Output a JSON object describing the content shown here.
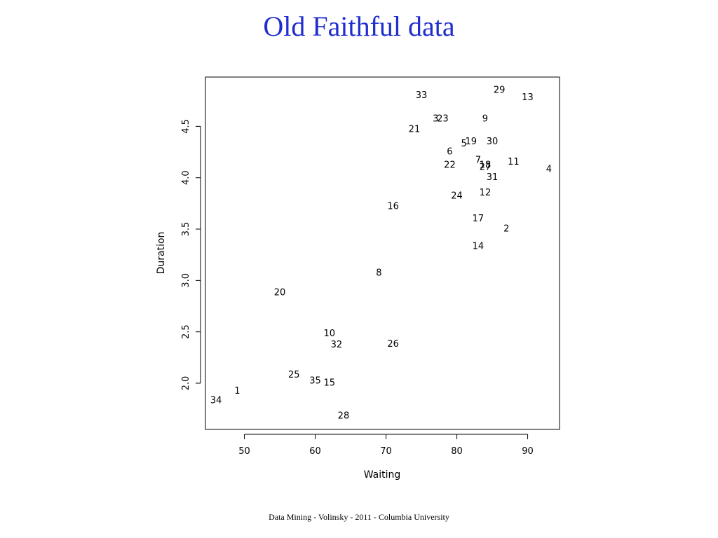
{
  "slide": {
    "title": "Old Faithful data",
    "footer": "Data Mining - Volinsky - 2011 -  Columbia University"
  },
  "chart_data": {
    "type": "scatter",
    "title": "",
    "xlabel": "Waiting",
    "ylabel": "Duration",
    "xlim": [
      44.5,
      94.5
    ],
    "ylim": [
      1.55,
      4.98
    ],
    "xticks": [
      50,
      60,
      70,
      80,
      90
    ],
    "yticks": [
      2.0,
      2.5,
      3.0,
      3.5,
      4.0,
      4.5
    ],
    "xtick_labels": [
      "50",
      "60",
      "70",
      "80",
      "90"
    ],
    "ytick_labels": [
      "2.0",
      "2.5",
      "3.0",
      "3.5",
      "4.0",
      "4.5"
    ],
    "grid": false,
    "point_marker": "text labels (observation index)",
    "points": [
      {
        "label": "1",
        "x": 49,
        "y": 1.92
      },
      {
        "label": "2",
        "x": 87,
        "y": 3.5
      },
      {
        "label": "3",
        "x": 77,
        "y": 4.57
      },
      {
        "label": "4",
        "x": 93,
        "y": 4.08
      },
      {
        "label": "5",
        "x": 81,
        "y": 4.33
      },
      {
        "label": "6",
        "x": 79,
        "y": 4.25
      },
      {
        "label": "7",
        "x": 83,
        "y": 4.17
      },
      {
        "label": "8",
        "x": 69,
        "y": 3.07
      },
      {
        "label": "9",
        "x": 84,
        "y": 4.57
      },
      {
        "label": "10",
        "x": 62,
        "y": 2.48
      },
      {
        "label": "11",
        "x": 88,
        "y": 4.15
      },
      {
        "label": "12",
        "x": 84,
        "y": 3.85
      },
      {
        "label": "13",
        "x": 90,
        "y": 4.78
      },
      {
        "label": "14",
        "x": 83,
        "y": 3.33
      },
      {
        "label": "15",
        "x": 62,
        "y": 2.0
      },
      {
        "label": "16",
        "x": 71,
        "y": 3.72
      },
      {
        "label": "17",
        "x": 83,
        "y": 3.6
      },
      {
        "label": "18",
        "x": 84,
        "y": 4.12
      },
      {
        "label": "19",
        "x": 82,
        "y": 4.35
      },
      {
        "label": "20",
        "x": 55,
        "y": 2.88
      },
      {
        "label": "21",
        "x": 74,
        "y": 4.47
      },
      {
        "label": "22",
        "x": 79,
        "y": 4.12
      },
      {
        "label": "23",
        "x": 78,
        "y": 4.57
      },
      {
        "label": "24",
        "x": 80,
        "y": 3.82
      },
      {
        "label": "25",
        "x": 57,
        "y": 2.08
      },
      {
        "label": "26",
        "x": 71,
        "y": 2.38
      },
      {
        "label": "27",
        "x": 84,
        "y": 4.1
      },
      {
        "label": "28",
        "x": 64,
        "y": 1.68
      },
      {
        "label": "29",
        "x": 86,
        "y": 4.85
      },
      {
        "label": "30",
        "x": 85,
        "y": 4.35
      },
      {
        "label": "31",
        "x": 85,
        "y": 4.0
      },
      {
        "label": "32",
        "x": 63,
        "y": 2.37
      },
      {
        "label": "33",
        "x": 75,
        "y": 4.8
      },
      {
        "label": "34",
        "x": 46,
        "y": 1.83
      },
      {
        "label": "35",
        "x": 60,
        "y": 2.02
      }
    ]
  }
}
